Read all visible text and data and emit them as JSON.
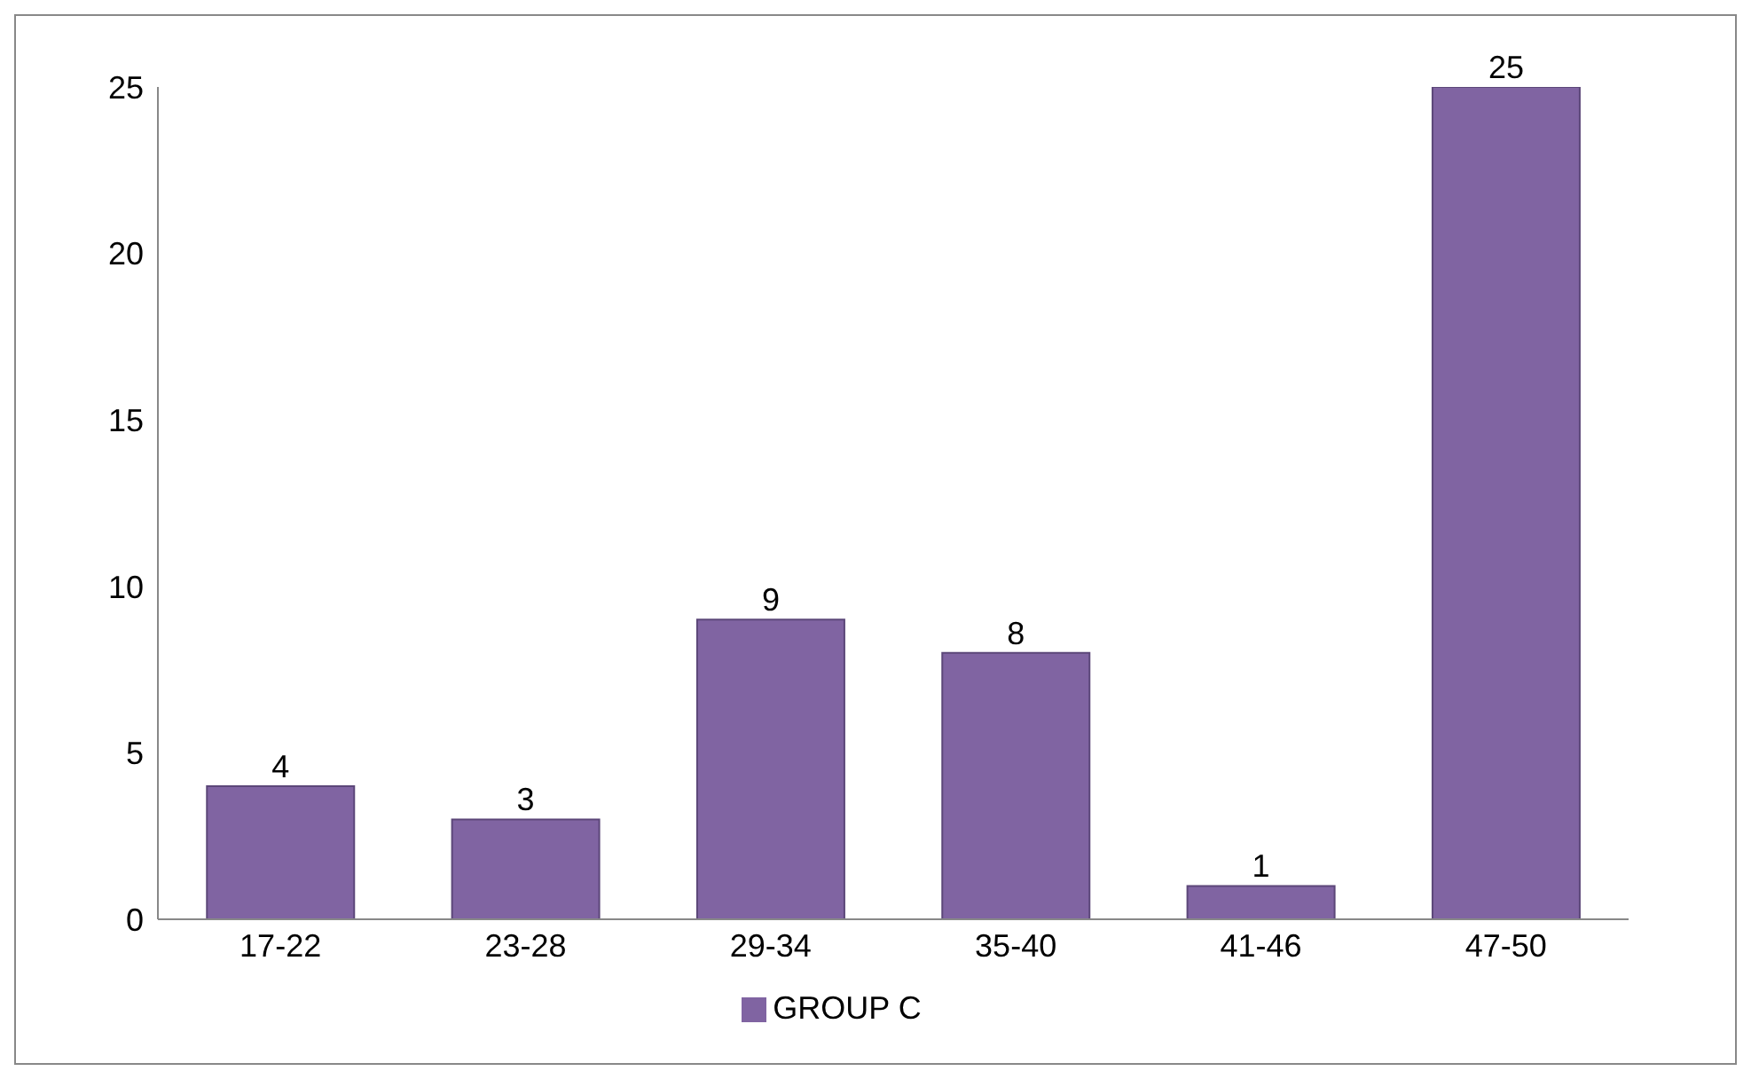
{
  "chart_data": {
    "type": "bar",
    "categories": [
      "17-22",
      "23-28",
      "29-34",
      "35-40",
      "41-46",
      "47-50"
    ],
    "series": [
      {
        "name": "GROUP C",
        "color": "#8064a2",
        "values": [
          4,
          3,
          9,
          8,
          1,
          25
        ]
      }
    ],
    "ylim": [
      0,
      25
    ],
    "yticks": [
      0,
      5,
      10,
      15,
      20,
      25
    ],
    "grid": false,
    "legend": "bottom",
    "data_labels": true
  }
}
